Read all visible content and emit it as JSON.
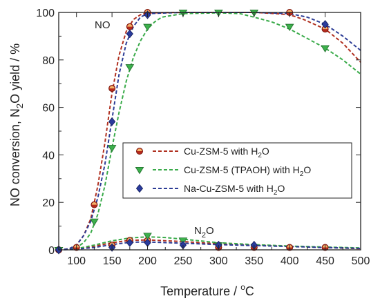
{
  "chart_data": {
    "type": "line",
    "title": "",
    "xlabel": {
      "prefix": "Temperature / ",
      "sup": "o",
      "suffix": "C"
    },
    "ylabel": {
      "part1": "NO conversion, N",
      "sub": "2",
      "part2": "O yield / %"
    },
    "xlim": [
      75,
      500
    ],
    "ylim": [
      0,
      100
    ],
    "xticks": [
      100,
      150,
      200,
      250,
      300,
      350,
      400,
      450,
      500
    ],
    "yticks": [
      0,
      20,
      40,
      60,
      80,
      100
    ],
    "grid": false,
    "legend_position": "center-right",
    "annotations": {
      "no": "NO",
      "n2o": {
        "base": "N",
        "sub": "2",
        "rest": "O"
      }
    },
    "series": [
      {
        "name": {
          "text": "Cu-ZSM-5 with H",
          "sub": "2",
          "tail": "O"
        },
        "color": "#b52a1c",
        "line_color": "#b03020",
        "marker": "hex",
        "no_points": {
          "x": [
            75,
            100,
            125,
            150,
            175,
            200,
            400,
            450
          ],
          "y": [
            0,
            1,
            19,
            68,
            94,
            100,
            100,
            93
          ]
        },
        "no_curve": {
          "x": [
            75,
            90,
            100,
            110,
            120,
            130,
            140,
            150,
            160,
            170,
            180,
            190,
            200,
            250,
            300,
            350,
            380,
            400,
            420,
            450,
            475,
            500
          ],
          "y": [
            0,
            0.5,
            2,
            6,
            13,
            27,
            45,
            66,
            82,
            92,
            97,
            99,
            99.8,
            100,
            100,
            100,
            99.5,
            99,
            97,
            93,
            87,
            79
          ]
        },
        "n2o_points": {
          "x": [
            75,
            150,
            175,
            200,
            300,
            350,
            400,
            450
          ],
          "y": [
            0,
            2,
            4,
            4,
            1,
            1,
            1,
            1
          ]
        },
        "n2o_curve": {
          "x": [
            75,
            100,
            125,
            150,
            175,
            200,
            250,
            300,
            350,
            400,
            450,
            500
          ],
          "y": [
            0,
            0.5,
            1.5,
            3,
            4,
            4.2,
            3.5,
            2.5,
            2,
            1.5,
            1,
            0.5
          ]
        }
      },
      {
        "name": {
          "text": "Cu-ZSM-5 (TPAOH) with H",
          "sub": "2",
          "tail": "O"
        },
        "color": "#3cb04c",
        "line_color": "#3aab4a",
        "marker": "triangle-down",
        "no_points": {
          "x": [
            75,
            125,
            150,
            175,
            200,
            250,
            300,
            350,
            400,
            450
          ],
          "y": [
            0,
            12,
            43,
            77,
            94,
            100,
            100,
            100,
            94,
            85
          ]
        },
        "no_curve": {
          "x": [
            75,
            90,
            100,
            110,
            120,
            130,
            140,
            150,
            160,
            170,
            180,
            190,
            200,
            210,
            220,
            250,
            300,
            330,
            350,
            375,
            400,
            425,
            450,
            475,
            500
          ],
          "y": [
            0,
            0.3,
            1,
            3,
            7,
            15,
            27,
            43,
            58,
            71,
            81,
            88,
            93,
            96,
            98,
            99.5,
            99.8,
            99.5,
            98,
            96,
            93,
            89,
            85,
            80,
            74
          ]
        },
        "n2o_points": {
          "x": [
            75,
            200,
            250,
            300
          ],
          "y": [
            0,
            6,
            4,
            2
          ]
        },
        "n2o_curve": {
          "x": [
            75,
            100,
            125,
            150,
            175,
            200,
            225,
            250,
            300,
            350,
            400,
            450,
            500
          ],
          "y": [
            0,
            0.5,
            2,
            3.8,
            5,
            5.5,
            5.2,
            4.5,
            3,
            2.2,
            1.6,
            1.2,
            0.8
          ]
        }
      },
      {
        "name": {
          "text": "Na-Cu-ZSM-5 with H",
          "sub": "2",
          "tail": "O"
        },
        "color": "#2a3b9c",
        "line_color": "#2c3c95",
        "marker": "diamond",
        "no_points": {
          "x": [
            75,
            150,
            175,
            200,
            450
          ],
          "y": [
            0,
            54,
            91,
            99,
            95
          ]
        },
        "no_curve": {
          "x": [
            75,
            90,
            100,
            110,
            120,
            130,
            140,
            150,
            160,
            170,
            180,
            190,
            200,
            250,
            300,
            350,
            400,
            425,
            450,
            475,
            500
          ],
          "y": [
            0,
            0.5,
            2,
            6,
            12,
            22,
            36,
            55,
            74,
            87,
            94,
            98,
            99.5,
            100,
            100,
            100,
            99.5,
            98,
            95,
            90,
            84
          ]
        },
        "n2o_points": {
          "x": [
            75,
            150,
            175,
            200,
            250,
            300,
            350
          ],
          "y": [
            0,
            1,
            3,
            3,
            2,
            2,
            2
          ]
        },
        "n2o_curve": {
          "x": [
            75,
            100,
            125,
            150,
            175,
            200,
            250,
            300,
            350,
            400,
            450,
            500
          ],
          "y": [
            0,
            0.3,
            1,
            2.2,
            3.2,
            3.3,
            2.8,
            2.2,
            1.8,
            1.4,
            1,
            0.6
          ]
        }
      }
    ]
  }
}
